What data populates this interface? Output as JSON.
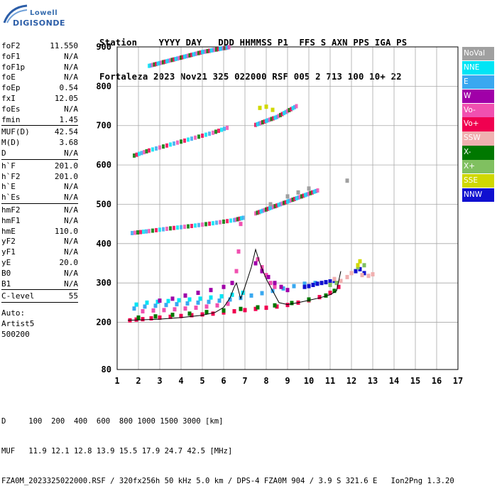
{
  "logo": {
    "line1": "Lowell",
    "line2": "DIGISONDE"
  },
  "header": {
    "labels": "Station    YYYY DAY   DDD HHMMSS P1  FFS S AXN PPS IGA PS",
    "values": "Fortaleza 2023 Nov21 325 022000 RSF 005 2 713 100 10+ 22"
  },
  "scaled_params": {
    "group1": [
      {
        "name": "foF2",
        "value": "11.550"
      },
      {
        "name": "foF1",
        "value": "N/A"
      },
      {
        "name": "foF1p",
        "value": "N/A"
      },
      {
        "name": "foE",
        "value": "N/A"
      },
      {
        "name": "foEp",
        "value": "0.54"
      },
      {
        "name": "fxI",
        "value": "12.05"
      },
      {
        "name": "foEs",
        "value": "N/A"
      },
      {
        "name": "fmin",
        "value": "1.45"
      }
    ],
    "group2": [
      {
        "name": "MUF(D)",
        "value": "42.54"
      },
      {
        "name": "M(D)",
        "value": "3.68"
      },
      {
        "name": "D",
        "value": "N/A"
      }
    ],
    "group3": [
      {
        "name": "h`F",
        "value": "201.0"
      },
      {
        "name": "h`F2",
        "value": "201.0"
      },
      {
        "name": "h`E",
        "value": "N/A"
      },
      {
        "name": "h`Es",
        "value": "N/A"
      }
    ],
    "group4": [
      {
        "name": "hmF2",
        "value": "N/A"
      },
      {
        "name": "hmF1",
        "value": "N/A"
      },
      {
        "name": "hmE",
        "value": "110.0"
      },
      {
        "name": "yF2",
        "value": "N/A"
      },
      {
        "name": "yF1",
        "value": "N/A"
      },
      {
        "name": "yE",
        "value": "20.0"
      },
      {
        "name": "B0",
        "value": "N/A"
      },
      {
        "name": "B1",
        "value": "N/A"
      }
    ],
    "group5": [
      {
        "name": "C-level",
        "value": "55"
      }
    ],
    "auto": [
      "Auto:",
      "Artist5",
      "500200"
    ]
  },
  "legend": [
    {
      "label": "NoVal",
      "color": "#a0a0a0"
    },
    {
      "label": "NNE",
      "color": "#00e5f5"
    },
    {
      "label": "E",
      "color": "#3aa8f0"
    },
    {
      "label": "W",
      "color": "#a000a8"
    },
    {
      "label": "Vo-",
      "color": "#f050b0"
    },
    {
      "label": "Vo+",
      "color": "#f00050"
    },
    {
      "label": "SSW",
      "color": "#f0b0b0"
    },
    {
      "label": "X-",
      "color": "#007800"
    },
    {
      "label": "X+",
      "color": "#80c060"
    },
    {
      "label": "SSE",
      "color": "#d0d800"
    },
    {
      "label": "NNW",
      "color": "#1010d0"
    }
  ],
  "chart_data": {
    "type": "scatter",
    "title": "",
    "xlabel": "",
    "ylabel": "",
    "xlim": [
      1,
      17
    ],
    "ylim": [
      80,
      900
    ],
    "x_ticks": [
      1,
      2,
      3,
      4,
      5,
      6,
      7,
      8,
      9,
      10,
      11,
      12,
      13,
      14,
      15,
      16,
      17
    ],
    "y_ticks": [
      80,
      200,
      300,
      400,
      500,
      600,
      700,
      800,
      900
    ],
    "grid": true,
    "series": [
      {
        "name": "Vo+",
        "color": "#f00050",
        "x": [
          1.6,
          1.9,
          2.2,
          2.6,
          3.0,
          3.5,
          4.0,
          4.5,
          5.0,
          5.5,
          6.0,
          6.5,
          7.0,
          7.5,
          8.0,
          8.5,
          9.0,
          9.5,
          10.0,
          10.5,
          11.0,
          11.4
        ],
        "y": [
          205,
          207,
          208,
          210,
          212,
          214,
          216,
          218,
          220,
          222,
          225,
          228,
          231,
          234,
          237,
          240,
          244,
          250,
          256,
          264,
          275,
          290
        ]
      },
      {
        "name": "X-",
        "color": "#007800",
        "x": [
          2.0,
          2.8,
          3.6,
          4.4,
          5.2,
          6.0,
          6.8,
          7.6,
          8.4,
          9.2,
          10.0,
          10.8,
          11.2
        ],
        "y": [
          212,
          215,
          219,
          222,
          226,
          230,
          234,
          238,
          243,
          249,
          258,
          268,
          280
        ]
      },
      {
        "name": "E",
        "color": "#3aa8f0",
        "x": [
          1.8,
          2.3,
          2.8,
          3.3,
          3.8,
          4.3,
          4.8,
          5.3,
          5.8,
          6.3,
          6.8,
          7.3,
          7.8,
          8.3,
          8.8,
          9.3,
          9.8,
          10.3,
          10.8,
          11.2
        ],
        "y": [
          235,
          240,
          242,
          244,
          246,
          248,
          250,
          252,
          255,
          258,
          262,
          268,
          274,
          280,
          286,
          292,
          298,
          300,
          302,
          305
        ]
      },
      {
        "name": "NNE",
        "color": "#00e5f5",
        "x": [
          1.9,
          2.4,
          2.9,
          3.4,
          3.9,
          4.4,
          4.9,
          5.4,
          5.9,
          6.4,
          6.9
        ],
        "y": [
          245,
          250,
          252,
          254,
          256,
          258,
          260,
          263,
          266,
          270,
          275
        ]
      },
      {
        "name": "Vo-",
        "color": "#f050b0",
        "x": [
          2.2,
          2.7,
          3.2,
          3.7,
          4.2,
          4.7,
          5.2,
          5.7,
          6.2,
          6.6,
          6.7,
          6.8,
          7.6,
          7.8,
          8.0,
          8.2,
          8.4
        ],
        "y": [
          228,
          230,
          231,
          233,
          235,
          237,
          240,
          243,
          247,
          330,
          380,
          450,
          360,
          340,
          320,
          300,
          290
        ]
      },
      {
        "name": "W",
        "color": "#a000a8",
        "x": [
          3.0,
          3.6,
          4.2,
          4.8,
          5.4,
          6.0,
          6.4,
          7.5,
          7.8,
          8.1,
          8.4,
          8.7,
          9.0
        ],
        "y": [
          255,
          260,
          268,
          275,
          282,
          290,
          300,
          350,
          330,
          315,
          300,
          290,
          282
        ]
      },
      {
        "name": "NNW",
        "color": "#1010d0",
        "x": [
          9.8,
          10.0,
          10.2,
          10.4,
          10.6,
          10.8,
          11.0,
          11.2,
          12.2,
          12.4,
          12.6
        ],
        "y": [
          290,
          292,
          295,
          298,
          300,
          302,
          304,
          306,
          330,
          335,
          325
        ]
      },
      {
        "name": "SSW",
        "color": "#f0b0b0",
        "x": [
          11.2,
          11.5,
          11.8,
          12.0,
          12.5,
          12.8,
          13.0
        ],
        "y": [
          310,
          305,
          315,
          325,
          320,
          318,
          322
        ]
      },
      {
        "name": "X+",
        "color": "#80c060",
        "x": [
          11.0,
          11.3,
          12.3,
          12.6
        ],
        "y": [
          295,
          300,
          340,
          345
        ]
      },
      {
        "name": "SSE",
        "color": "#d0d800",
        "x": [
          7.7,
          8.0,
          8.3,
          12.3,
          12.4
        ],
        "y": [
          745,
          748,
          740,
          345,
          355
        ]
      },
      {
        "name": "NoVal",
        "color": "#a0a0a0",
        "x": [
          8.2,
          9.0,
          9.5,
          10.0,
          11.8
        ],
        "y": [
          500,
          520,
          530,
          540,
          560
        ]
      }
    ],
    "multihop_bands": [
      {
        "x": [
          1.7,
          2.5,
          3.5,
          4.5,
          5.5,
          6.5,
          7.0
        ],
        "y": [
          425,
          430,
          437,
          443,
          450,
          458,
          465
        ]
      },
      {
        "x": [
          7.5,
          8.0,
          8.5,
          9.0,
          9.5,
          10.0,
          10.5
        ],
        "y": [
          475,
          485,
          495,
          505,
          515,
          525,
          535
        ]
      },
      {
        "x": [
          1.8,
          2.5,
          3.5,
          4.5,
          5.5,
          6.3
        ],
        "y": [
          622,
          635,
          650,
          665,
          680,
          695
        ]
      },
      {
        "x": [
          7.5,
          8.0,
          8.5,
          9.0,
          9.5
        ],
        "y": [
          700,
          710,
          720,
          735,
          750
        ]
      },
      {
        "x": [
          2.5,
          3.0,
          3.5,
          4.0,
          4.5,
          5.0,
          5.5,
          6.0,
          6.3
        ],
        "y": [
          850,
          857,
          864,
          871,
          878,
          885,
          890,
          895,
          898
        ]
      }
    ],
    "trace_line": {
      "x": [
        1.5,
        2.0,
        3.0,
        4.0,
        5.0,
        5.6,
        6.0,
        6.3,
        6.5,
        6.6,
        6.8,
        7.0,
        7.3,
        7.5,
        7.7,
        8.0,
        8.3,
        8.6,
        9.0,
        9.5,
        10.0,
        10.5,
        11.0,
        11.3,
        11.5
      ],
      "y": [
        205,
        206,
        208,
        212,
        218,
        225,
        238,
        262,
        290,
        300,
        260,
        290,
        340,
        385,
        350,
        310,
        280,
        250,
        245,
        250,
        256,
        262,
        270,
        280,
        330
      ]
    }
  },
  "footer": {
    "line1": "D     100  200  400  600  800 1000 1500 3000 [km]",
    "line2": "MUF   11.9 12.1 12.8 13.9 15.5 17.9 24.7 42.5 [MHz]",
    "line3": "FZA0M_2023325022000.RSF / 320fx256h 50 kHz 5.0 km / DPS-4 FZA0M 904 / 3.9 S 321.6 E   Ion2Png 1.3.20"
  }
}
